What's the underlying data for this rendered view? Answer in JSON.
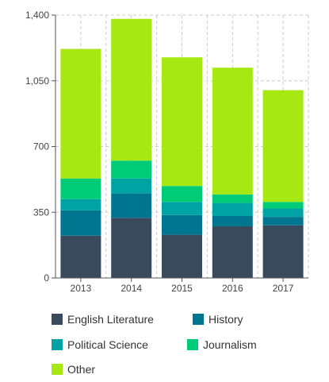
{
  "chart_data": {
    "type": "bar",
    "stacked": true,
    "categories": [
      "2013",
      "2014",
      "2015",
      "2016",
      "2017"
    ],
    "series": [
      {
        "name": "English Literature",
        "color": "#3a4a5d",
        "values": [
          225,
          320,
          230,
          275,
          280
        ]
      },
      {
        "name": "History",
        "color": "#00758f",
        "values": [
          135,
          130,
          105,
          55,
          45
        ]
      },
      {
        "name": "Political Science",
        "color": "#00a3a3",
        "values": [
          60,
          80,
          70,
          70,
          45
        ]
      },
      {
        "name": "Journalism",
        "color": "#00cc77",
        "values": [
          110,
          95,
          85,
          45,
          35
        ]
      },
      {
        "name": "Other",
        "color": "#a8e812",
        "values": [
          690,
          755,
          685,
          675,
          595
        ]
      }
    ],
    "ylim": [
      0,
      1400
    ],
    "yticks": [
      "0",
      "350",
      "700",
      "1,050",
      "1,400"
    ],
    "grid": true,
    "legend_position": "bottom"
  }
}
